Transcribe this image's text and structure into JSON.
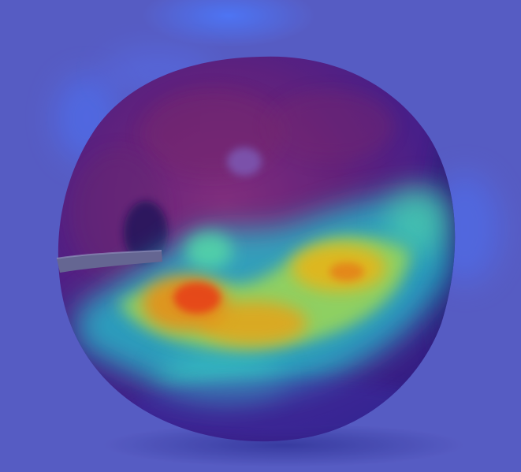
{
  "image": {
    "subject": "apple",
    "overlay": "heatmap"
  },
  "colors": {
    "background": "#5b5fc2",
    "background_glow": "#4f6bff",
    "apple_shadow_side": "#3a1e7a",
    "apple_skin_deep": "#4a1a80",
    "apple_skin_red": "#7a2060",
    "stem": "#6b6a8a",
    "heat_low": "#00e0ff",
    "heat_mid": "#7cff4a",
    "heat_high": "#ffd400",
    "heat_peak": "#ff3a00"
  },
  "icons": {
    "subject_icon": "apple-icon"
  }
}
